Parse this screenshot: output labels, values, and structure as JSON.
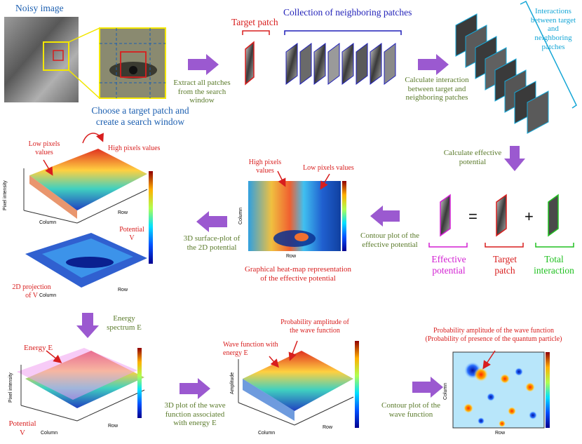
{
  "row1": {
    "noisy_image": "Noisy image",
    "choose_caption_l1": "Choose a target patch and",
    "choose_caption_l2": "create a search window",
    "extract_l1": "Extract all patches",
    "extract_l2": "from the search",
    "extract_l3": "window",
    "target_patch": "Target patch",
    "collection": "Collection of neighboring patches",
    "calc_interaction_l1": "Calculate interaction",
    "calc_interaction_l2": "between target and",
    "calc_interaction_l3": "neighboring patches",
    "interactions_l1": "Interactions",
    "interactions_l2": "between target",
    "interactions_l3": "and",
    "interactions_l4": "neighboring",
    "interactions_l5": "patches"
  },
  "row2": {
    "low_pixels_left_l1": "Low pixels",
    "low_pixels_left_l2": "values",
    "high_pixels_left": "High pixels values",
    "potential_v_l1": "Potential",
    "potential_v_l2": "V",
    "projection_l1": "2D projection",
    "projection_l2": "of V",
    "surface_caption_l1": "3D surface-plot of",
    "surface_caption_l2": "the 2D potential",
    "high_pixels_mid_l1": "High pixels",
    "high_pixels_mid_l2": "values",
    "low_pixels_mid": "Low pixels values",
    "heatmap_caption_l1": "Graphical heat-map representation",
    "heatmap_caption_l2": "of the effective potential",
    "contour_caption_l1": "Contour plot of the",
    "contour_caption_l2": "effective potential",
    "calc_effective_l1": "Calculate effective",
    "calc_effective_l2": "potential",
    "equals": "=",
    "plus": "+",
    "effective_potential_l1": "Effective",
    "effective_potential_l2": "potential",
    "target_patch_l1": "Target",
    "target_patch_l2": "patch",
    "total_interaction_l1": "Total",
    "total_interaction_l2": "interaction"
  },
  "row3": {
    "energy_spectrum_l1": "Energy",
    "energy_spectrum_l2": "spectrum E",
    "energy_e": "Energy E",
    "potential_v_l1": "Potential",
    "potential_v_l2": "V",
    "wave3d_caption_l1": "3D plot of the wave",
    "wave3d_caption_l2": "function associated",
    "wave3d_caption_l3": "with energy E",
    "wave_function_l1": "Wave function with",
    "wave_function_l2": "energy E",
    "prob_amp_l1": "Probability amplitude of",
    "prob_amp_l2": "the wave function",
    "contour_wave_l1": "Contour plot of the",
    "contour_wave_l2": "wave function",
    "prob_presence_l1": "Probability amplitude of the wave function",
    "prob_presence_l2": "(Probability of presence of the quantum particle)"
  },
  "axes": {
    "pixel_intensity": "Pixel intensity",
    "column": "Column",
    "row": "Row",
    "amplitude": "Amplitude"
  },
  "colors": {
    "arrow": "#9b59d0",
    "red": "#d81e1e",
    "navy": "#1f1fb8",
    "cyan": "#15a6d6",
    "magenta": "#d21fd2",
    "lime": "#20c020",
    "olive": "#5a7a2a",
    "blue": "#1c5fb0",
    "yellow": "#f2e600"
  }
}
